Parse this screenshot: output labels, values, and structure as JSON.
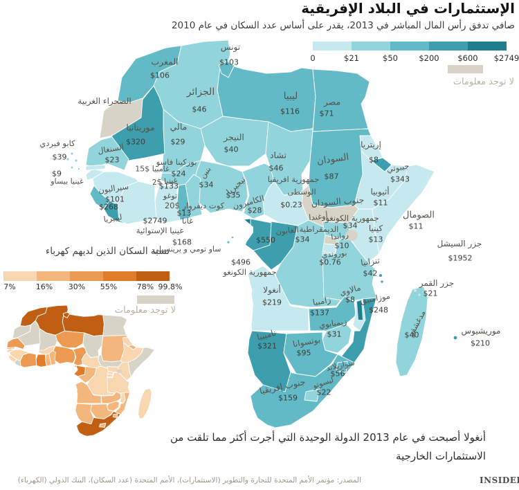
{
  "title": "الإستثمارات في البلاد الإفريقية",
  "subtitle": "صافي تدفق رأس المال المباشر في 2013، يقدر على أساس عدد السكان في عام 2010",
  "legend_investment": {
    "ticks": [
      "0",
      "$21",
      "$50",
      "$200",
      "$600",
      "$2749"
    ],
    "colors": [
      "#c5e9ee",
      "#92d4dc",
      "#63bac7",
      "#3d9ead",
      "#1e7e8d"
    ],
    "no_data_label": "لا توجد معلومات",
    "no_data_color": "#d7d3c6"
  },
  "legend_electricity": {
    "title": "نسبة السكان الذين لديهم كهرباء",
    "ticks": [
      "7%",
      "16%",
      "30%",
      "55%",
      "78%",
      "99.8%"
    ],
    "colors": [
      "#f7d6b0",
      "#f3b77e",
      "#ec9a52",
      "#e07b28",
      "#c05f14"
    ],
    "no_data_label": "لا توجد معلومات",
    "no_data_color": "#d7d3c6"
  },
  "countries": [
    {
      "id": "MAR",
      "name": "المغرب",
      "value": "$106"
    },
    {
      "id": "ESH",
      "name": "الصحراء الغربية",
      "value": null
    },
    {
      "id": "DZA",
      "name": "الجزائر",
      "value": "$46"
    },
    {
      "id": "TUN",
      "name": "تونس",
      "value": "$103"
    },
    {
      "id": "LBY",
      "name": "ليبيا",
      "value": "$116"
    },
    {
      "id": "EGY",
      "name": "مصر",
      "value": "$71"
    },
    {
      "id": "MRT",
      "name": "موريتانيا",
      "value": "$320"
    },
    {
      "id": "MLI",
      "name": "مالي",
      "value": "$29"
    },
    {
      "id": "NER",
      "name": "النيجر",
      "value": "$40"
    },
    {
      "id": "TCD",
      "name": "تشاد",
      "value": "$46"
    },
    {
      "id": "SDN",
      "name": "السودان",
      "value": "$87"
    },
    {
      "id": "ERI",
      "name": "إريتريا",
      "value": "$8"
    },
    {
      "id": "DJI",
      "name": "جيبوتي",
      "value": "$343"
    },
    {
      "id": "ETH",
      "name": "أثيوبيا",
      "value": "$11"
    },
    {
      "id": "SSD",
      "name": "جنوب السودان",
      "value": null
    },
    {
      "id": "SOM",
      "name": "الصومال",
      "value": "$11"
    },
    {
      "id": "CPV",
      "name": "كابو فيردي",
      "value": "$39"
    },
    {
      "id": "SEN",
      "name": "السنغال",
      "value": "$23"
    },
    {
      "id": "GMB",
      "name": "غامبيا",
      "value": "$15"
    },
    {
      "id": "GNB",
      "name": "غينيا بيساو",
      "value": "$9"
    },
    {
      "id": "GIN",
      "name": "غينيا",
      "value": "$2"
    },
    {
      "id": "SLE",
      "name": "سيراليون",
      "value": "$101"
    },
    {
      "id": "LBR",
      "name": "ليبيريا",
      "value": "$268"
    },
    {
      "id": "BFA",
      "name": "بوركينا فاسو",
      "value": "$24"
    },
    {
      "id": "CIV",
      "name": "كوت ديفروار",
      "value": "$20"
    },
    {
      "id": "GHA",
      "name": "غانا",
      "value": "$13"
    },
    {
      "id": "TGO",
      "name": "توغو",
      "value": "$133"
    },
    {
      "id": "BEN",
      "name": "بنين",
      "value": "$34"
    },
    {
      "id": "NGA",
      "name": "نيجيريا",
      "value": "$35"
    },
    {
      "id": "CMR",
      "name": "الكاميرون",
      "value": "$28"
    },
    {
      "id": "CAF",
      "name": "جمهورية افريقيا\nالوسطى",
      "value": "$0.23"
    },
    {
      "id": "GNQ",
      "name": "غينيا الإستوائية",
      "value": "$2749"
    },
    {
      "id": "STP",
      "name": "ساو تومي و برينسيلي",
      "value": "$168"
    },
    {
      "id": "GAB",
      "name": "الغابون",
      "value": "$550"
    },
    {
      "id": "COG",
      "name": "جمهورية الكونغو",
      "value": "$496"
    },
    {
      "id": "COD",
      "name": "جمهورية الكونغو\nالديمقراطية",
      "value": "$34"
    },
    {
      "id": "UGA",
      "name": "أوغندا",
      "value": "$34"
    },
    {
      "id": "RWA",
      "name": "رواندا",
      "value": "$10"
    },
    {
      "id": "BDI",
      "name": "بوروندي",
      "value": "$0.76"
    },
    {
      "id": "KEN",
      "name": "كينيا",
      "value": "$13"
    },
    {
      "id": "TZA",
      "name": "تنزانيا",
      "value": "$42"
    },
    {
      "id": "SYC",
      "name": "جزر السيشل",
      "value": "$1952"
    },
    {
      "id": "COM",
      "name": "جزر القمر",
      "value": "$21"
    },
    {
      "id": "MDG",
      "name": "مدغشقر",
      "value": "$40"
    },
    {
      "id": "MUS",
      "name": "موريشيوس",
      "value": "$210"
    },
    {
      "id": "AGO",
      "name": "أنغولا",
      "value": "$219"
    },
    {
      "id": "ZMB",
      "name": "زامبيا",
      "value": "$137"
    },
    {
      "id": "MWI",
      "name": "مالاوي",
      "value": "$8"
    },
    {
      "id": "MOZ",
      "name": "موزامبيق",
      "value": "$248"
    },
    {
      "id": "ZWE",
      "name": "زيمبابوي",
      "value": "$31"
    },
    {
      "id": "NAM",
      "name": "ناميبيا",
      "value": "$321"
    },
    {
      "id": "BWA",
      "name": "بوتسوانا",
      "value": "$95"
    },
    {
      "id": "SWZ",
      "name": "سواريلاند",
      "value": "$56"
    },
    {
      "id": "LSO",
      "name": "ليسوتو",
      "value": "$22"
    },
    {
      "id": "ZAF",
      "name": "جنوب إفريقيا",
      "value": "$159"
    }
  ],
  "footnote_line1": "أنغولا أصبحت  في عام 2013 الدولة الوحيدة التي أجرت أكثر مما تلقت من",
  "footnote_line2": "الاستثمارات الخارجية",
  "source": "المصدر: مؤتمر الأمم المتحدة للتجارة والتطوير (الاستثمارات)، الأمم المتحدة (عدد السكان)، البنك الدولي (الكهرباء)",
  "brand": "INSIDER"
}
